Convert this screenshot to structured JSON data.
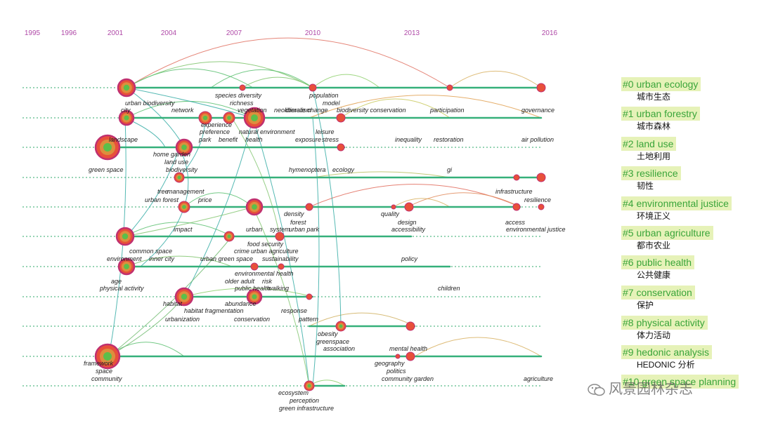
{
  "years": [
    "1995",
    "1996",
    "2001",
    "2004",
    "2007",
    "2010",
    "2013",
    "2016"
  ],
  "clusters": [
    {
      "label": "#0 urban ecology",
      "cn": "城市生态"
    },
    {
      "label": "#1 urban forestry",
      "cn": "城市森林"
    },
    {
      "label": "#2 land use",
      "cn": "土地利用"
    },
    {
      "label": "#3 resilience",
      "cn": "韧性"
    },
    {
      "label": "#4 environmental justice",
      "cn": "环境正义"
    },
    {
      "label": "#5 urban agriculture",
      "cn": "都市农业"
    },
    {
      "label": "#6 public health",
      "cn": "公共健康"
    },
    {
      "label": "#7 conservation",
      "cn": "保护"
    },
    {
      "label": "#8 physical activity",
      "cn": "体力活动"
    },
    {
      "label": "#9 hedonic analysis",
      "cn": "HEDONIC 分析"
    },
    {
      "label": "#10 green space planning",
      "cn": ""
    }
  ],
  "terms": [
    "species diversity",
    "richness",
    "population",
    "model",
    "urban biodiversity",
    "city",
    "network",
    "neoliberalism",
    "climate change",
    "biodiversity conservation",
    "participation",
    "governance",
    "vegetation",
    "experience",
    "preference",
    "natural environment",
    "park",
    "benefit",
    "health",
    "leisure",
    "exposure",
    "stress",
    "inequality",
    "restoration",
    "air pollution",
    "landscape",
    "home garden",
    "land use",
    "green space",
    "biodiversity",
    "hymenoptera",
    "ecology",
    "gi",
    "management",
    "tree",
    "infrastructure",
    "resilience",
    "urban forest",
    "price",
    "density",
    "forest",
    "quality",
    "design",
    "access",
    "environmental justice",
    "impact",
    "urban",
    "system",
    "urban park",
    "accessibility",
    "common space",
    "food security",
    "environment",
    "inner city",
    "crime",
    "urban agriculture",
    "urban green space",
    "sustainability",
    "policy",
    "environmental health",
    "age",
    "physical activity",
    "older adult",
    "risk",
    "public health",
    "walking",
    "children",
    "habitat",
    "abundance",
    "habitat fragmentation",
    "response",
    "urbanization",
    "conservation",
    "pattern",
    "obesity",
    "greenspace",
    "association",
    "mental health",
    "framework",
    "space",
    "community",
    "geography",
    "politics",
    "community garden",
    "agriculture",
    "ecosystem",
    "perception",
    "green infrastructure"
  ],
  "watermark": "风景园林杂志",
  "colors": {
    "year": "#b04aa8",
    "line": "#2ea86a",
    "legend_bg": "#e6f2b8",
    "legend_text": "#3aa53a"
  }
}
